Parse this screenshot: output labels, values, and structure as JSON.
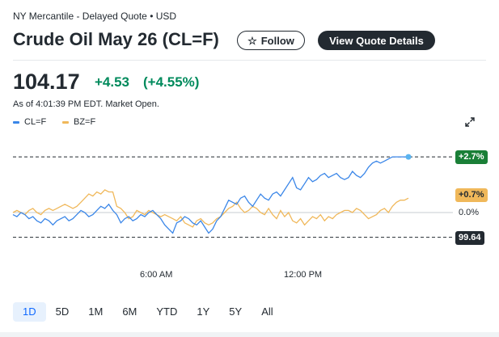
{
  "header": {
    "exchange": "NY Mercantile - Delayed Quote • USD",
    "title": "Crude Oil May 26 (CL=F)",
    "follow_label": "Follow",
    "view_quote_label": "View Quote Details"
  },
  "quote": {
    "price": "104.17",
    "change": "+4.53",
    "change_percent": "(+4.55%)",
    "as_of": "As of 4:01:39 PM EDT. Market Open."
  },
  "legend": [
    {
      "label": "CL=F",
      "color": "#3a86e8"
    },
    {
      "label": "BZ=F",
      "color": "#f0b85a"
    }
  ],
  "icons": {
    "follow": "star-icon",
    "expand": "expand-icon"
  },
  "chart": {
    "cl_tag": "+2.7%",
    "bz_tag": "+0.7%",
    "zero_label": "0.0%",
    "prev_close_tag": "99.64",
    "x_labels": [
      "6:00 AM",
      "12:00 PM"
    ],
    "colors": {
      "cl": "#3a86e8",
      "bz": "#f0b85a",
      "up_tag": "#1a7f37",
      "prev_tag": "#232a31"
    }
  },
  "chart_data": {
    "type": "line",
    "xlabel": "",
    "ylabel": "",
    "x_ticks": [
      "6:00 AM",
      "12:00 PM"
    ],
    "y_unit": "%",
    "series": [
      {
        "name": "CL=F",
        "x": [
          0,
          5,
          10,
          15,
          20,
          25,
          30,
          35,
          40,
          45,
          50,
          55,
          60,
          65,
          70,
          75,
          80,
          85,
          90,
          95,
          100,
          105,
          110,
          115,
          120,
          125,
          130,
          135,
          140,
          145,
          150,
          155,
          160,
          165,
          170,
          175,
          180,
          185,
          190,
          195,
          200,
          205,
          210,
          215,
          220,
          225,
          230,
          235,
          240,
          245,
          250,
          255,
          260,
          265,
          270,
          275,
          280,
          285,
          290,
          295,
          300,
          305,
          310,
          315,
          320,
          325,
          330,
          335,
          340,
          345,
          350,
          355,
          360,
          365,
          370,
          375,
          380,
          385,
          390,
          395,
          400,
          405,
          410,
          415,
          420,
          425,
          430,
          435,
          440,
          445,
          450,
          455,
          460,
          465,
          470,
          475,
          480,
          485,
          490,
          495
        ],
        "values": [
          -0.1,
          -0.2,
          0.0,
          -0.1,
          -0.3,
          -0.2,
          -0.4,
          -0.5,
          -0.3,
          -0.4,
          -0.6,
          -0.4,
          -0.3,
          -0.2,
          -0.4,
          -0.3,
          -0.1,
          0.1,
          0.0,
          -0.2,
          -0.1,
          0.1,
          0.3,
          0.2,
          0.4,
          0.1,
          -0.1,
          -0.5,
          -0.3,
          -0.2,
          -0.4,
          -0.3,
          -0.1,
          -0.2,
          0.0,
          0.1,
          -0.1,
          -0.3,
          -0.6,
          -0.8,
          -1.0,
          -0.5,
          -0.4,
          -0.2,
          -0.3,
          -0.5,
          -0.6,
          -0.4,
          -0.7,
          -1.0,
          -0.8,
          -0.4,
          -0.2,
          0.2,
          0.6,
          0.5,
          0.4,
          0.7,
          0.8,
          0.5,
          0.3,
          0.6,
          0.9,
          0.7,
          0.6,
          0.9,
          1.0,
          0.8,
          1.1,
          1.4,
          1.7,
          1.2,
          1.1,
          1.4,
          1.7,
          1.5,
          1.6,
          1.8,
          1.9,
          1.7,
          1.8,
          1.9,
          1.7,
          1.6,
          1.7,
          2.0,
          1.8,
          1.7,
          1.9,
          2.2,
          2.4,
          2.5,
          2.4,
          2.5,
          2.6,
          2.7,
          2.7,
          2.7,
          2.7,
          2.7
        ]
      },
      {
        "name": "BZ=F",
        "x": [
          0,
          5,
          10,
          15,
          20,
          25,
          30,
          35,
          40,
          45,
          50,
          55,
          60,
          65,
          70,
          75,
          80,
          85,
          90,
          95,
          100,
          105,
          110,
          115,
          120,
          125,
          130,
          135,
          140,
          145,
          150,
          155,
          160,
          165,
          170,
          175,
          180,
          185,
          190,
          195,
          200,
          205,
          210,
          215,
          220,
          225,
          230,
          235,
          240,
          245,
          250,
          255,
          260,
          265,
          270,
          275,
          280,
          285,
          290,
          295,
          300,
          305,
          310,
          315,
          320,
          325,
          330,
          335,
          340,
          345,
          350,
          355,
          360,
          365,
          370,
          375,
          380,
          385,
          390,
          395,
          400,
          405,
          410,
          415,
          420,
          425,
          430,
          435,
          440,
          445,
          450,
          455,
          460,
          465,
          470,
          475,
          480,
          485,
          490,
          495
        ],
        "values": [
          0.0,
          0.1,
          0.0,
          -0.1,
          0.1,
          0.2,
          0.0,
          -0.1,
          0.1,
          0.2,
          0.1,
          0.2,
          0.3,
          0.4,
          0.3,
          0.2,
          0.3,
          0.5,
          0.7,
          0.9,
          0.8,
          1.0,
          0.9,
          1.1,
          1.0,
          1.0,
          0.3,
          0.2,
          0.0,
          -0.3,
          -0.2,
          0.1,
          0.0,
          -0.1,
          0.1,
          0.0,
          -0.1,
          -0.2,
          -0.1,
          -0.2,
          -0.3,
          -0.4,
          -0.2,
          -0.5,
          -0.6,
          -0.7,
          -0.4,
          -0.3,
          -0.5,
          -0.6,
          -0.5,
          -0.3,
          -0.2,
          0.0,
          0.2,
          0.3,
          0.5,
          0.2,
          0.0,
          0.1,
          0.3,
          0.2,
          0.0,
          -0.1,
          0.2,
          -0.1,
          -0.3,
          0.1,
          -0.2,
          0.0,
          -0.4,
          -0.5,
          -0.3,
          -0.6,
          -0.4,
          -0.2,
          -0.3,
          -0.1,
          -0.4,
          -0.2,
          -0.3,
          -0.1,
          0.0,
          0.1,
          0.1,
          0.0,
          0.2,
          0.1,
          -0.1,
          -0.3,
          -0.2,
          -0.1,
          0.1,
          0.2,
          0.0,
          0.3,
          0.5,
          0.6,
          0.6,
          0.7
        ]
      }
    ],
    "reference_lines": [
      {
        "label": "+2.7%",
        "value": 2.7
      },
      {
        "label": "0.0%",
        "value": 0.0
      },
      {
        "label": "99.64",
        "value": -1.2
      }
    ],
    "grid": false,
    "legend_position": "top-left"
  }
}
